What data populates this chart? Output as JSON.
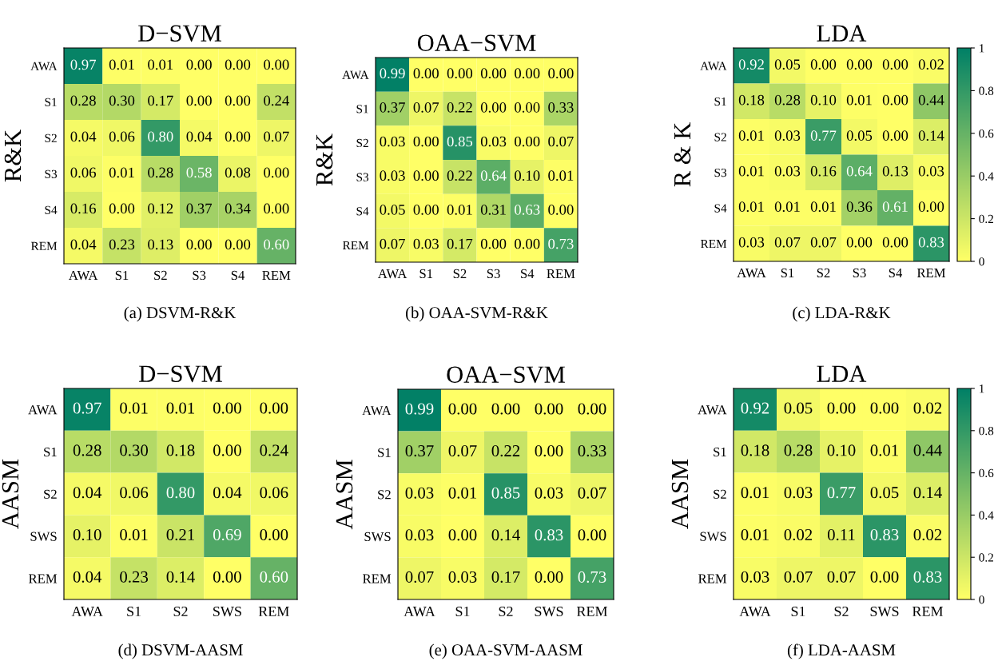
{
  "chart_data": [
    {
      "type": "heatmap",
      "title": "D−SVM",
      "ylabel": "R&K",
      "annotations": [
        "(a) DSVM-R&K"
      ],
      "categories": [
        "AWA",
        "S1",
        "S2",
        "S3",
        "S4",
        "REM"
      ],
      "y_categories": [
        "AWA",
        "S1",
        "S2",
        "S3",
        "S4",
        "REM"
      ],
      "cells": [
        [
          0.97,
          0.01,
          0.01,
          0.0,
          0.0,
          0.0
        ],
        [
          0.28,
          0.3,
          0.17,
          0.0,
          0.0,
          0.24
        ],
        [
          0.04,
          0.06,
          0.8,
          0.04,
          0.0,
          0.07
        ],
        [
          0.06,
          0.01,
          0.28,
          0.58,
          0.08,
          0.0
        ],
        [
          0.16,
          0.0,
          0.12,
          0.37,
          0.34,
          0.0
        ],
        [
          0.04,
          0.23,
          0.13,
          0.0,
          0.0,
          0.6
        ]
      ],
      "cell_labels": [
        [
          "0.97",
          "0.01",
          "0.01",
          "0.00",
          "0.00",
          "0.00"
        ],
        [
          "0.28",
          "0.30",
          "0.17",
          "0.00",
          "0.00",
          "0.24"
        ],
        [
          "0.04",
          "0.06",
          "0.80",
          "0.04",
          "0.00",
          "0.07"
        ],
        [
          "0.06",
          "0.01",
          "0.28",
          "0.58",
          "0.08",
          "0.00"
        ],
        [
          "0.16",
          "0.00",
          "0.12",
          "0.37",
          "0.34",
          "0.00"
        ],
        [
          "0.04",
          "0.23",
          "0.13",
          "0.00",
          "0.00",
          "0.60"
        ]
      ]
    },
    {
      "type": "heatmap",
      "title": "OAA−SVM",
      "ylabel": "R&K",
      "annotations": [
        "(b) OAA-SVM-R&K"
      ],
      "categories": [
        "AWA",
        "S1",
        "S2",
        "S3",
        "S4",
        "REM"
      ],
      "y_categories": [
        "AWA",
        "S1",
        "S2",
        "S3",
        "S4",
        "REM"
      ],
      "cells": [
        [
          0.99,
          0.0,
          0.0,
          0.0,
          0.0,
          0.0
        ],
        [
          0.37,
          0.07,
          0.22,
          0.0,
          0.0,
          0.33
        ],
        [
          0.03,
          0.0,
          0.85,
          0.03,
          0.0,
          0.07
        ],
        [
          0.03,
          0.0,
          0.22,
          0.64,
          0.1,
          0.01
        ],
        [
          0.05,
          0.0,
          0.01,
          0.31,
          0.63,
          0.0
        ],
        [
          0.07,
          0.03,
          0.17,
          0.0,
          0.0,
          0.73
        ]
      ],
      "cell_labels": [
        [
          "0.99",
          "0.00",
          "0.00",
          "0.00",
          "0.00",
          "0.00"
        ],
        [
          "0.37",
          "0.07",
          "0.22",
          "0.00",
          "0.00",
          "0.33"
        ],
        [
          "0.03",
          "0.00",
          "0.85",
          "0.03",
          "0.00",
          "0.07"
        ],
        [
          "0.03",
          "0.00",
          "0.22",
          "0.64",
          "0.10",
          "0.01"
        ],
        [
          "0.05",
          "0.00",
          "0.01",
          "0.31",
          "0.63",
          "0.00"
        ],
        [
          "0.07",
          "0.03",
          "0.17",
          "0.00",
          "0.00",
          "0.73"
        ]
      ]
    },
    {
      "type": "heatmap",
      "title": "LDA",
      "ylabel": "R & K",
      "annotations": [
        "(c) LDA-R&K"
      ],
      "categories": [
        "AWA",
        "S1",
        "S2",
        "S3",
        "S4",
        "REM"
      ],
      "y_categories": [
        "AWA",
        "S1",
        "S2",
        "S3",
        "S4",
        "REM"
      ],
      "cells": [
        [
          0.92,
          0.05,
          0.0,
          0.0,
          0.0,
          0.02
        ],
        [
          0.18,
          0.28,
          0.1,
          0.01,
          0.0,
          0.44
        ],
        [
          0.01,
          0.03,
          0.77,
          0.05,
          0.0,
          0.14
        ],
        [
          0.01,
          0.03,
          0.16,
          0.64,
          0.13,
          0.03
        ],
        [
          0.01,
          0.01,
          0.01,
          0.36,
          0.61,
          0.0
        ],
        [
          0.03,
          0.07,
          0.07,
          0.0,
          0.0,
          0.83
        ]
      ],
      "cell_labels": [
        [
          "0.92",
          "0.05",
          "0.00",
          "0.00",
          "0.00",
          "0.02"
        ],
        [
          "0.18",
          "0.28",
          "0.10",
          "0.01",
          "0.00",
          "0.44"
        ],
        [
          "0.01",
          "0.03",
          "0.77",
          "0.05",
          "0.00",
          "0.14"
        ],
        [
          "0.01",
          "0.03",
          "0.16",
          "0.64",
          "0.13",
          "0.03"
        ],
        [
          "0.01",
          "0.01",
          "0.01",
          "0.36",
          "0.61",
          "0.00"
        ],
        [
          "0.03",
          "0.07",
          "0.07",
          "0.00",
          "0.00",
          "0.83"
        ]
      ],
      "clim": [
        0,
        1
      ],
      "cticks": [
        0,
        0.2,
        0.4,
        0.6,
        0.8,
        1
      ]
    },
    {
      "type": "heatmap",
      "title": "D−SVM",
      "ylabel": "AASM",
      "annotations": [
        "(d) DSVM-AASM"
      ],
      "categories": [
        "AWA",
        "S1",
        "S2",
        "SWS",
        "REM"
      ],
      "y_categories": [
        "AWA",
        "S1",
        "S2",
        "SWS",
        "REM"
      ],
      "cells": [
        [
          0.97,
          0.01,
          0.01,
          0.0,
          0.0
        ],
        [
          0.28,
          0.3,
          0.18,
          0.0,
          0.24
        ],
        [
          0.04,
          0.06,
          0.8,
          0.04,
          0.06
        ],
        [
          0.1,
          0.01,
          0.21,
          0.69,
          0.0
        ],
        [
          0.04,
          0.23,
          0.14,
          0.0,
          0.6
        ]
      ],
      "cell_labels": [
        [
          "0.97",
          "0.01",
          "0.01",
          "0.00",
          "0.00"
        ],
        [
          "0.28",
          "0.30",
          "0.18",
          "0.00",
          "0.24"
        ],
        [
          "0.04",
          "0.06",
          "0.80",
          "0.04",
          "0.06"
        ],
        [
          "0.10",
          "0.01",
          "0.21",
          "0.69",
          "0.00"
        ],
        [
          "0.04",
          "0.23",
          "0.14",
          "0.00",
          "0.60"
        ]
      ]
    },
    {
      "type": "heatmap",
      "title": "OAA−SVM",
      "ylabel": "AASM",
      "annotations": [
        "(e) OAA-SVM-AASM"
      ],
      "categories": [
        "AWA",
        "S1",
        "S2",
        "SWS",
        "REM"
      ],
      "y_categories": [
        "AWA",
        "S1",
        "S2",
        "SWS",
        "REM"
      ],
      "cells": [
        [
          0.99,
          0.0,
          0.0,
          0.0,
          0.0
        ],
        [
          0.37,
          0.07,
          0.22,
          0.0,
          0.33
        ],
        [
          0.03,
          0.01,
          0.85,
          0.03,
          0.07
        ],
        [
          0.03,
          0.0,
          0.14,
          0.83,
          0.0
        ],
        [
          0.07,
          0.03,
          0.17,
          0.0,
          0.73
        ]
      ],
      "cell_labels": [
        [
          "0.99",
          "0.00",
          "0.00",
          "0.00",
          "0.00"
        ],
        [
          "0.37",
          "0.07",
          "0.22",
          "0.00",
          "0.33"
        ],
        [
          "0.03",
          "0.01",
          "0.85",
          "0.03",
          "0.07"
        ],
        [
          "0.03",
          "0.00",
          "0.14",
          "0.83",
          "0.00"
        ],
        [
          "0.07",
          "0.03",
          "0.17",
          "0.00",
          "0.73"
        ]
      ]
    },
    {
      "type": "heatmap",
      "title": "LDA",
      "ylabel": "AASM",
      "annotations": [
        "(f) LDA-AASM"
      ],
      "categories": [
        "AWA",
        "S1",
        "S2",
        "SWS",
        "REM"
      ],
      "y_categories": [
        "AWA",
        "S1",
        "S2",
        "SWS",
        "REM"
      ],
      "cells": [
        [
          0.92,
          0.05,
          0.0,
          0.0,
          0.02
        ],
        [
          0.18,
          0.28,
          0.1,
          0.01,
          0.44
        ],
        [
          0.01,
          0.03,
          0.77,
          0.05,
          0.14
        ],
        [
          0.01,
          0.02,
          0.11,
          0.83,
          0.02
        ],
        [
          0.03,
          0.07,
          0.07,
          0.0,
          0.83
        ]
      ],
      "cell_labels": [
        [
          "0.92",
          "0.05",
          "0.00",
          "0.00",
          "0.02"
        ],
        [
          "0.18",
          "0.28",
          "0.10",
          "0.01",
          "0.44"
        ],
        [
          "0.01",
          "0.03",
          "0.77",
          "0.05",
          "0.14"
        ],
        [
          "0.01",
          "0.02",
          "0.11",
          "0.83",
          "0.02"
        ],
        [
          "0.03",
          "0.07",
          "0.07",
          "0.00",
          "0.83"
        ]
      ],
      "clim": [
        0,
        1
      ],
      "cticks": [
        0,
        0.2,
        0.4,
        0.6,
        0.8,
        1
      ]
    }
  ]
}
